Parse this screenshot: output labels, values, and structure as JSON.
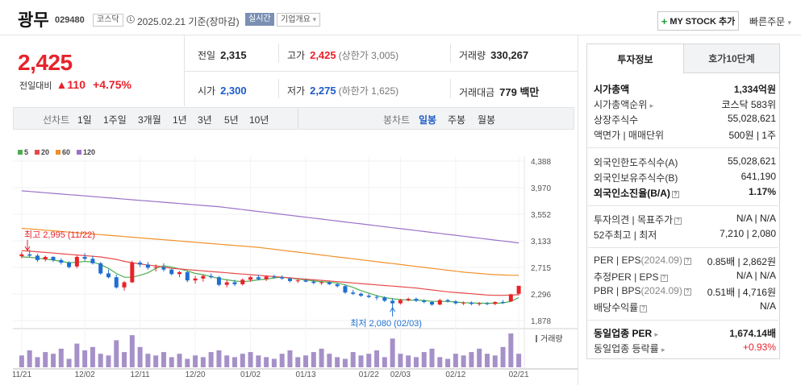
{
  "header": {
    "name": "광무",
    "code": "029480",
    "market": "코스닥",
    "date": "2025.02.21",
    "basis": "기준(장마감)",
    "realtime": "실시간",
    "company_info": "기업개요",
    "mystock": "MY STOCK 추가",
    "quick_order": "빠른주문"
  },
  "price": {
    "current": "2,425",
    "change_label": "전일대비",
    "change": "110",
    "change_pct": "+4.75%"
  },
  "stats": {
    "prev_label": "전일",
    "prev": "2,315",
    "high_label": "고가",
    "high": "2,425",
    "upper_limit": "(상한가 3,005)",
    "volume_label": "거래량",
    "volume": "330,267",
    "open_label": "시가",
    "open": "2,300",
    "low_label": "저가",
    "low": "2,275",
    "lower_limit": "(하한가 1,625)",
    "amount_label": "거래대금",
    "amount": "779 백만"
  },
  "period_bar": {
    "line_label": "선차트",
    "line_options": [
      "1일",
      "1주일",
      "3개월",
      "1년",
      "3년",
      "5년",
      "10년"
    ],
    "candle_label": "봉차트",
    "candle_options": [
      "일봉",
      "주봉",
      "월봉"
    ],
    "candle_selected": "일봉"
  },
  "chart_data": {
    "type": "candlestick",
    "legend": [
      {
        "name": "5",
        "color": "#4caf50"
      },
      {
        "name": "20",
        "color": "#e84a4a"
      },
      {
        "name": "60",
        "color": "#f0902a"
      },
      {
        "name": "120",
        "color": "#9a72c8"
      }
    ],
    "y_ticks": [
      "4,388",
      "3,970",
      "3,552",
      "3,133",
      "2,715",
      "2,296",
      "1,878"
    ],
    "ylim": [
      1878,
      4388
    ],
    "x_ticks": [
      "11/21",
      "12/02",
      "12/11",
      "12/20",
      "01/02",
      "01/13",
      "01/22",
      "02/03",
      "02/12",
      "02/21"
    ],
    "volume_label": "거래량",
    "high_annotation": "최고 2,995 (11/22)",
    "low_annotation": "최저 2,080 (02/03)",
    "candles": [
      [
        2890,
        2960,
        2860,
        2920
      ],
      [
        2920,
        2995,
        2880,
        2900
      ],
      [
        2900,
        2930,
        2800,
        2830
      ],
      [
        2840,
        2900,
        2810,
        2880
      ],
      [
        2880,
        2890,
        2800,
        2830
      ],
      [
        2830,
        2860,
        2760,
        2790
      ],
      [
        2790,
        2810,
        2700,
        2720
      ],
      [
        2730,
        2900,
        2700,
        2880
      ],
      [
        2880,
        2940,
        2820,
        2850
      ],
      [
        2850,
        2900,
        2760,
        2780
      ],
      [
        2780,
        2800,
        2600,
        2620
      ],
      [
        2620,
        2680,
        2540,
        2560
      ],
      [
        2560,
        2600,
        2380,
        2400
      ],
      [
        2400,
        2500,
        2350,
        2480
      ],
      [
        2480,
        2820,
        2470,
        2790
      ],
      [
        2790,
        2820,
        2720,
        2760
      ],
      [
        2760,
        2800,
        2680,
        2710
      ],
      [
        2710,
        2760,
        2650,
        2720
      ],
      [
        2720,
        2780,
        2650,
        2680
      ],
      [
        2680,
        2700,
        2590,
        2610
      ],
      [
        2610,
        2660,
        2560,
        2640
      ],
      [
        2640,
        2660,
        2480,
        2510
      ],
      [
        2510,
        2580,
        2460,
        2540
      ],
      [
        2540,
        2600,
        2490,
        2580
      ],
      [
        2580,
        2620,
        2540,
        2560
      ],
      [
        2560,
        2580,
        2420,
        2440
      ],
      [
        2440,
        2520,
        2400,
        2480
      ],
      [
        2480,
        2520,
        2420,
        2450
      ],
      [
        2450,
        2540,
        2430,
        2520
      ],
      [
        2520,
        2580,
        2490,
        2560
      ],
      [
        2560,
        2600,
        2510,
        2530
      ],
      [
        2530,
        2590,
        2500,
        2570
      ],
      [
        2570,
        2600,
        2540,
        2560
      ],
      [
        2560,
        2590,
        2520,
        2540
      ],
      [
        2540,
        2560,
        2480,
        2500
      ],
      [
        2500,
        2530,
        2470,
        2510
      ],
      [
        2510,
        2540,
        2480,
        2490
      ],
      [
        2490,
        2520,
        2450,
        2470
      ],
      [
        2470,
        2500,
        2440,
        2480
      ],
      [
        2480,
        2500,
        2440,
        2450
      ],
      [
        2450,
        2470,
        2400,
        2420
      ],
      [
        2420,
        2440,
        2300,
        2320
      ],
      [
        2320,
        2360,
        2280,
        2300
      ],
      [
        2300,
        2320,
        2250,
        2270
      ],
      [
        2270,
        2300,
        2230,
        2250
      ],
      [
        2250,
        2280,
        2200,
        2240
      ],
      [
        2240,
        2260,
        2170,
        2190
      ],
      [
        2190,
        2230,
        2080,
        2150
      ],
      [
        2150,
        2220,
        2130,
        2200
      ],
      [
        2200,
        2240,
        2180,
        2220
      ],
      [
        2220,
        2240,
        2170,
        2190
      ],
      [
        2190,
        2210,
        2150,
        2170
      ],
      [
        2170,
        2190,
        2110,
        2130
      ],
      [
        2130,
        2220,
        2120,
        2200
      ],
      [
        2200,
        2220,
        2160,
        2180
      ],
      [
        2180,
        2200,
        2130,
        2150
      ],
      [
        2150,
        2180,
        2120,
        2160
      ],
      [
        2160,
        2180,
        2120,
        2140
      ],
      [
        2140,
        2170,
        2110,
        2150
      ],
      [
        2150,
        2170,
        2120,
        2140
      ],
      [
        2140,
        2180,
        2120,
        2170
      ],
      [
        2170,
        2200,
        2140,
        2160
      ],
      [
        2180,
        2300,
        2170,
        2290
      ],
      [
        2300,
        2425,
        2275,
        2425
      ]
    ],
    "volumes": [
      35,
      50,
      30,
      45,
      40,
      55,
      25,
      70,
      50,
      60,
      40,
      35,
      80,
      45,
      95,
      60,
      40,
      35,
      45,
      30,
      40,
      25,
      35,
      30,
      45,
      50,
      35,
      30,
      40,
      45,
      35,
      30,
      25,
      40,
      50,
      30,
      35,
      45,
      55,
      40,
      30,
      25,
      45,
      35,
      40,
      50,
      30,
      85,
      40,
      35,
      30,
      45,
      55,
      30,
      25,
      40,
      35,
      45,
      55,
      40,
      35,
      60,
      100,
      40
    ],
    "ma": {
      "5": [
        2880,
        2875,
        2860,
        2845,
        2830,
        2810,
        2790,
        2795,
        2810,
        2800,
        2760,
        2700,
        2620,
        2560,
        2560,
        2590,
        2630,
        2700,
        2740,
        2720,
        2690,
        2660,
        2620,
        2600,
        2570,
        2540,
        2520,
        2500,
        2490,
        2500,
        2520,
        2530,
        2550,
        2560,
        2550,
        2530,
        2520,
        2500,
        2490,
        2480,
        2470,
        2440,
        2400,
        2350,
        2310,
        2270,
        2240,
        2220,
        2210,
        2200,
        2200,
        2195,
        2180,
        2180,
        2180,
        2170,
        2160,
        2155,
        2150,
        2150,
        2150,
        2155,
        2180,
        2240
      ],
      "20": [
        2980,
        2970,
        2960,
        2950,
        2940,
        2930,
        2920,
        2910,
        2900,
        2890,
        2880,
        2860,
        2840,
        2810,
        2790,
        2770,
        2750,
        2740,
        2720,
        2700,
        2690,
        2680,
        2670,
        2660,
        2650,
        2640,
        2630,
        2620,
        2610,
        2600,
        2590,
        2580,
        2570,
        2560,
        2550,
        2540,
        2530,
        2520,
        2510,
        2500,
        2490,
        2480,
        2470,
        2460,
        2450,
        2440,
        2430,
        2420,
        2410,
        2400,
        2390,
        2375,
        2360,
        2345,
        2330,
        2320,
        2310,
        2300,
        2290,
        2280,
        2275,
        2275,
        2280,
        2285
      ],
      "60": [
        3330,
        3320,
        3310,
        3300,
        3290,
        3280,
        3270,
        3260,
        3250,
        3240,
        3230,
        3220,
        3210,
        3200,
        3190,
        3180,
        3170,
        3160,
        3150,
        3140,
        3130,
        3120,
        3110,
        3100,
        3090,
        3080,
        3070,
        3060,
        3050,
        3040,
        3030,
        3015,
        3000,
        2985,
        2970,
        2955,
        2940,
        2925,
        2910,
        2895,
        2880,
        2865,
        2850,
        2835,
        2820,
        2805,
        2790,
        2775,
        2760,
        2745,
        2730,
        2715,
        2700,
        2685,
        2670,
        2655,
        2640,
        2630,
        2620,
        2610,
        2600,
        2595,
        2590,
        2590
      ],
      "120": [
        3920,
        3910,
        3900,
        3890,
        3880,
        3870,
        3860,
        3850,
        3840,
        3830,
        3820,
        3810,
        3800,
        3790,
        3780,
        3770,
        3760,
        3750,
        3740,
        3730,
        3720,
        3710,
        3700,
        3690,
        3680,
        3670,
        3655,
        3640,
        3625,
        3610,
        3595,
        3580,
        3565,
        3550,
        3535,
        3520,
        3505,
        3490,
        3475,
        3460,
        3445,
        3430,
        3415,
        3400,
        3385,
        3370,
        3355,
        3340,
        3325,
        3310,
        3295,
        3280,
        3265,
        3250,
        3235,
        3220,
        3205,
        3190,
        3175,
        3160,
        3145,
        3130,
        3115,
        3100
      ]
    }
  },
  "right_panel": {
    "tabs": [
      "투자정보",
      "호가10단계"
    ],
    "s1": [
      {
        "k": "시가총액",
        "v": "1,334억원"
      },
      {
        "k": "시가총액순위",
        "v": "코스닥 583위"
      },
      {
        "k": "상장주식수",
        "v": "55,028,621"
      },
      {
        "k": "액면가 | 매매단위",
        "v": "500원 | 1주"
      }
    ],
    "s2": [
      {
        "k": "외국인한도주식수(A)",
        "v": "55,028,621"
      },
      {
        "k": "외국인보유주식수(B)",
        "v": "641,190"
      },
      {
        "k": "외국인소진율(B/A)",
        "v": "1.17%"
      }
    ],
    "s3": [
      {
        "k": "투자의견 | 목표주가",
        "v": "N/A | N/A"
      },
      {
        "k": "52주최고 | 최저",
        "v": "7,210 | 2,080"
      }
    ],
    "s4": [
      {
        "k": "PER | EPS",
        "k2": "(2024.09)",
        "v": "0.85배 | 2,862원"
      },
      {
        "k": "추정PER | EPS",
        "v": "N/A | N/A"
      },
      {
        "k": "PBR | BPS",
        "k2": "(2024.09)",
        "v": "0.51배 | 4,716원"
      },
      {
        "k": "배당수익률",
        "v": "N/A"
      }
    ],
    "s5": [
      {
        "k": "동일업종 PER",
        "v": "1,674.14배"
      },
      {
        "k": "동일업종 등락률",
        "v": "+0.93%"
      }
    ]
  }
}
